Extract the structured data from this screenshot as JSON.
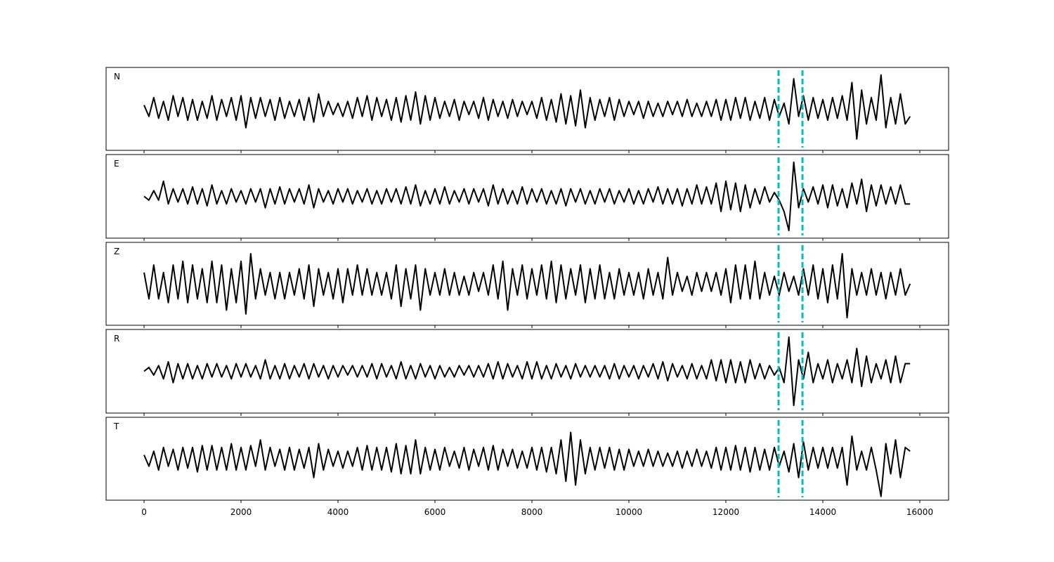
{
  "chart_data": {
    "type": "line",
    "x": [
      0,
      100,
      200,
      300,
      400,
      500,
      600,
      700,
      800,
      900,
      1000,
      1100,
      1200,
      1300,
      1400,
      1500,
      1600,
      1700,
      1800,
      1900,
      2000,
      2100,
      2200,
      2300,
      2400,
      2500,
      2600,
      2700,
      2800,
      2900,
      3000,
      3100,
      3200,
      3300,
      3400,
      3500,
      3600,
      3700,
      3800,
      3900,
      4000,
      4100,
      4200,
      4300,
      4400,
      4500,
      4600,
      4700,
      4800,
      4900,
      5000,
      5100,
      5200,
      5300,
      5400,
      5500,
      5600,
      5700,
      5800,
      5900,
      6000,
      6100,
      6200,
      6300,
      6400,
      6500,
      6600,
      6700,
      6800,
      6900,
      7000,
      7100,
      7200,
      7300,
      7400,
      7500,
      7600,
      7700,
      7800,
      7900,
      8000,
      8100,
      8200,
      8300,
      8400,
      8500,
      8600,
      8700,
      8800,
      8900,
      9000,
      9100,
      9200,
      9300,
      9400,
      9500,
      9600,
      9700,
      9800,
      9900,
      10000,
      10100,
      10200,
      10300,
      10400,
      10500,
      10600,
      10700,
      10800,
      10900,
      11000,
      11100,
      11200,
      11300,
      11400,
      11500,
      11600,
      11700,
      11800,
      11900,
      12000,
      12100,
      12200,
      12300,
      12400,
      12500,
      12600,
      12700,
      12800,
      12900,
      13000,
      13100,
      13200,
      13300,
      13400,
      13500,
      13600,
      13700,
      13800,
      13900,
      14000,
      14100,
      14200,
      14300,
      14400,
      14500,
      14600,
      14700,
      14800,
      14900,
      15000,
      15100,
      15200,
      15300,
      15400,
      15500,
      15600,
      15700,
      15800
    ],
    "xlim": [
      -783,
      16594
    ],
    "xticks": [
      0,
      2000,
      4000,
      6000,
      8000,
      10000,
      12000,
      14000,
      16000
    ],
    "ylim": [
      -1.1,
      1.1
    ],
    "vlines": [
      13087,
      13580
    ],
    "vline_color": "#00bfbf",
    "series": [
      {
        "name": "N",
        "color": "#000000",
        "values": [
          0.1,
          -0.2,
          0.3,
          -0.25,
          0.2,
          -0.3,
          0.35,
          -0.2,
          0.3,
          -0.3,
          0.25,
          -0.3,
          0.2,
          -0.25,
          0.35,
          -0.3,
          0.25,
          -0.2,
          0.3,
          -0.3,
          0.35,
          -0.5,
          0.3,
          -0.25,
          0.3,
          -0.2,
          0.25,
          -0.3,
          0.3,
          -0.25,
          0.2,
          -0.2,
          0.25,
          -0.3,
          0.3,
          -0.35,
          0.4,
          -0.2,
          0.2,
          -0.15,
          0.15,
          -0.2,
          0.2,
          -0.25,
          0.3,
          -0.2,
          0.35,
          -0.3,
          0.3,
          -0.2,
          0.25,
          -0.3,
          0.3,
          -0.35,
          0.35,
          -0.3,
          0.45,
          -0.4,
          0.35,
          -0.3,
          0.3,
          -0.25,
          0.2,
          -0.2,
          0.25,
          -0.3,
          0.2,
          -0.15,
          0.2,
          -0.25,
          0.3,
          -0.3,
          0.25,
          -0.2,
          0.2,
          -0.25,
          0.25,
          -0.2,
          0.2,
          -0.15,
          0.2,
          -0.25,
          0.3,
          -0.3,
          0.25,
          -0.35,
          0.4,
          -0.4,
          0.35,
          -0.45,
          0.5,
          -0.5,
          0.3,
          -0.3,
          0.25,
          -0.2,
          0.3,
          -0.3,
          0.25,
          -0.2,
          0.2,
          -0.15,
          0.2,
          -0.25,
          0.2,
          -0.2,
          0.15,
          -0.2,
          0.2,
          -0.15,
          0.2,
          -0.2,
          0.25,
          -0.2,
          0.15,
          -0.2,
          0.2,
          -0.2,
          0.25,
          -0.3,
          0.25,
          -0.3,
          0.3,
          -0.25,
          0.3,
          -0.3,
          0.2,
          -0.25,
          0.3,
          -0.3,
          0.25,
          -0.2,
          0.15,
          -0.4,
          0.8,
          -0.2,
          0.35,
          -0.3,
          0.3,
          -0.25,
          0.25,
          -0.3,
          0.3,
          -0.25,
          0.35,
          -0.3,
          0.7,
          -0.8,
          0.5,
          -0.4,
          0.3,
          -0.3,
          0.9,
          -0.5,
          0.3,
          -0.4,
          0.4,
          -0.4,
          -0.2
        ]
      },
      {
        "name": "E",
        "color": "#000000",
        "values": [
          0.0,
          -0.1,
          0.15,
          -0.1,
          0.4,
          -0.2,
          0.2,
          -0.15,
          0.2,
          -0.2,
          0.25,
          -0.2,
          0.2,
          -0.25,
          0.3,
          -0.2,
          0.15,
          -0.2,
          0.2,
          -0.15,
          0.15,
          -0.2,
          0.2,
          -0.15,
          0.2,
          -0.3,
          0.2,
          -0.2,
          0.25,
          -0.2,
          0.2,
          -0.15,
          0.2,
          -0.2,
          0.3,
          -0.3,
          0.2,
          -0.15,
          0.15,
          -0.2,
          0.2,
          -0.15,
          0.2,
          -0.2,
          0.15,
          -0.15,
          0.2,
          -0.2,
          0.15,
          -0.2,
          0.2,
          -0.15,
          0.2,
          -0.2,
          0.25,
          -0.2,
          0.3,
          -0.25,
          0.15,
          -0.2,
          0.2,
          -0.2,
          0.25,
          -0.2,
          0.15,
          -0.15,
          0.2,
          -0.2,
          0.2,
          -0.15,
          0.2,
          -0.25,
          0.3,
          -0.2,
          0.2,
          -0.2,
          0.15,
          -0.2,
          0.25,
          -0.2,
          0.2,
          -0.15,
          0.2,
          -0.2,
          0.15,
          -0.2,
          0.2,
          -0.25,
          0.2,
          -0.15,
          0.2,
          -0.2,
          0.15,
          -0.2,
          0.2,
          -0.15,
          0.2,
          -0.2,
          0.15,
          -0.15,
          0.2,
          -0.2,
          0.15,
          -0.2,
          0.2,
          -0.15,
          0.25,
          -0.2,
          0.2,
          -0.2,
          0.2,
          -0.25,
          0.2,
          -0.2,
          0.3,
          -0.2,
          0.25,
          -0.2,
          0.35,
          -0.4,
          0.4,
          -0.35,
          0.35,
          -0.4,
          0.3,
          -0.3,
          0.2,
          -0.2,
          0.25,
          -0.15,
          0.1,
          -0.1,
          -0.4,
          -0.9,
          0.9,
          -0.3,
          0.2,
          -0.15,
          0.25,
          -0.2,
          0.3,
          -0.3,
          0.3,
          -0.25,
          0.2,
          -0.3,
          0.35,
          -0.2,
          0.45,
          -0.4,
          0.3,
          -0.25,
          0.3,
          -0.2,
          0.25,
          -0.2,
          0.3,
          -0.2,
          -0.2
        ]
      },
      {
        "name": "Z",
        "color": "#000000",
        "values": [
          0.3,
          -0.4,
          0.5,
          -0.4,
          0.3,
          -0.5,
          0.5,
          -0.4,
          0.6,
          -0.5,
          0.5,
          -0.4,
          0.4,
          -0.5,
          0.6,
          -0.5,
          0.5,
          -0.7,
          0.4,
          -0.5,
          0.6,
          -0.8,
          0.8,
          -0.4,
          0.4,
          -0.3,
          0.3,
          -0.4,
          0.3,
          -0.4,
          0.3,
          -0.3,
          0.4,
          -0.4,
          0.5,
          -0.6,
          0.4,
          -0.3,
          0.3,
          -0.4,
          0.4,
          -0.5,
          0.4,
          -0.3,
          0.5,
          -0.3,
          0.4,
          -0.3,
          0.3,
          -0.3,
          0.3,
          -0.4,
          0.5,
          -0.6,
          0.4,
          -0.4,
          0.5,
          -0.7,
          0.4,
          -0.3,
          0.3,
          -0.3,
          0.4,
          -0.3,
          0.3,
          -0.3,
          0.2,
          -0.3,
          0.3,
          -0.2,
          0.3,
          -0.3,
          0.5,
          -0.4,
          0.6,
          -0.7,
          0.4,
          -0.3,
          0.5,
          -0.4,
          0.4,
          -0.3,
          0.5,
          -0.4,
          0.6,
          -0.5,
          0.5,
          -0.4,
          0.4,
          -0.3,
          0.5,
          -0.5,
          0.4,
          -0.4,
          0.5,
          -0.4,
          0.3,
          -0.4,
          0.4,
          -0.3,
          0.3,
          -0.3,
          0.3,
          -0.4,
          0.4,
          -0.3,
          0.3,
          -0.4,
          0.7,
          -0.3,
          0.3,
          -0.2,
          0.2,
          -0.3,
          0.3,
          -0.2,
          0.3,
          -0.2,
          0.3,
          -0.3,
          0.4,
          -0.5,
          0.5,
          -0.4,
          0.5,
          -0.4,
          0.6,
          -0.4,
          0.3,
          -0.3,
          0.2,
          -0.3,
          0.3,
          -0.2,
          0.2,
          -0.3,
          0.4,
          -0.3,
          0.5,
          -0.4,
          0.4,
          -0.5,
          0.5,
          -0.4,
          0.8,
          -0.9,
          0.4,
          -0.3,
          0.3,
          -0.3,
          0.4,
          -0.3,
          0.3,
          -0.4,
          0.3,
          -0.3,
          0.4,
          -0.3,
          0.0
        ]
      },
      {
        "name": "R",
        "color": "#000000",
        "values": [
          0.0,
          0.1,
          -0.1,
          0.15,
          -0.2,
          0.25,
          -0.3,
          0.2,
          -0.2,
          0.2,
          -0.2,
          0.15,
          -0.2,
          0.2,
          -0.15,
          0.2,
          -0.15,
          0.15,
          -0.2,
          0.2,
          -0.15,
          0.2,
          -0.15,
          0.15,
          -0.2,
          0.3,
          -0.2,
          0.15,
          -0.2,
          0.2,
          -0.2,
          0.15,
          -0.15,
          0.2,
          -0.2,
          0.2,
          -0.15,
          0.15,
          -0.2,
          0.15,
          -0.15,
          0.15,
          -0.1,
          0.15,
          -0.15,
          0.15,
          -0.15,
          0.2,
          -0.2,
          0.2,
          -0.15,
          0.15,
          -0.2,
          0.25,
          -0.2,
          0.15,
          -0.2,
          0.2,
          -0.15,
          0.15,
          -0.2,
          0.15,
          -0.15,
          0.1,
          -0.15,
          0.15,
          -0.1,
          0.15,
          -0.15,
          0.15,
          -0.15,
          0.2,
          -0.2,
          0.25,
          -0.2,
          0.2,
          -0.15,
          0.15,
          -0.2,
          0.25,
          -0.2,
          0.25,
          -0.2,
          0.15,
          -0.2,
          0.2,
          -0.15,
          0.15,
          -0.2,
          0.2,
          -0.15,
          0.15,
          -0.15,
          0.15,
          -0.15,
          0.15,
          -0.2,
          0.2,
          -0.2,
          0.15,
          -0.15,
          0.15,
          -0.2,
          0.15,
          -0.15,
          0.2,
          -0.2,
          0.25,
          -0.25,
          0.2,
          -0.15,
          0.15,
          -0.2,
          0.2,
          -0.2,
          0.15,
          -0.2,
          0.3,
          -0.25,
          0.3,
          -0.3,
          0.3,
          -0.3,
          0.25,
          -0.3,
          0.3,
          -0.2,
          0.2,
          -0.2,
          0.15,
          -0.1,
          0.1,
          -0.3,
          0.9,
          -0.9,
          0.3,
          -0.2,
          0.5,
          -0.3,
          0.2,
          -0.2,
          0.3,
          -0.3,
          0.2,
          -0.2,
          0.3,
          -0.3,
          0.6,
          -0.4,
          0.4,
          -0.3,
          0.2,
          -0.2,
          0.3,
          -0.3,
          0.4,
          -0.3,
          0.2,
          0.2
        ]
      },
      {
        "name": "T",
        "color": "#000000",
        "values": [
          0.1,
          -0.2,
          0.2,
          -0.3,
          0.3,
          -0.2,
          0.25,
          -0.3,
          0.3,
          -0.25,
          0.3,
          -0.35,
          0.35,
          -0.3,
          0.35,
          -0.3,
          0.3,
          -0.3,
          0.4,
          -0.3,
          0.3,
          -0.3,
          0.35,
          -0.2,
          0.5,
          -0.3,
          0.3,
          -0.2,
          0.25,
          -0.3,
          0.3,
          -0.3,
          0.25,
          -0.25,
          0.3,
          -0.5,
          0.4,
          -0.3,
          0.25,
          -0.2,
          0.2,
          -0.25,
          0.2,
          -0.2,
          0.3,
          -0.3,
          0.35,
          -0.3,
          0.3,
          -0.3,
          0.3,
          -0.35,
          0.4,
          -0.4,
          0.35,
          -0.4,
          0.5,
          -0.4,
          0.3,
          -0.3,
          0.25,
          -0.3,
          0.3,
          -0.2,
          0.2,
          -0.25,
          0.3,
          -0.3,
          0.25,
          -0.2,
          0.3,
          -0.3,
          0.35,
          -0.3,
          0.25,
          -0.2,
          0.25,
          -0.25,
          0.2,
          -0.25,
          0.3,
          -0.3,
          0.3,
          -0.35,
          0.3,
          -0.4,
          0.5,
          -0.6,
          0.7,
          -0.7,
          0.5,
          -0.4,
          0.3,
          -0.3,
          0.3,
          -0.25,
          0.3,
          -0.3,
          0.25,
          -0.3,
          0.25,
          -0.2,
          0.2,
          -0.2,
          0.25,
          -0.2,
          0.2,
          -0.2,
          0.15,
          -0.2,
          0.2,
          -0.25,
          0.2,
          -0.2,
          0.25,
          -0.2,
          0.2,
          -0.25,
          0.3,
          -0.3,
          0.3,
          -0.3,
          0.35,
          -0.3,
          0.3,
          -0.35,
          0.3,
          -0.3,
          0.25,
          -0.3,
          0.3,
          -0.2,
          0.2,
          -0.35,
          0.4,
          -0.5,
          0.45,
          -0.3,
          0.3,
          -0.25,
          0.3,
          -0.25,
          0.3,
          -0.25,
          0.3,
          -0.7,
          0.6,
          -0.3,
          0.2,
          -0.3,
          0.3,
          -0.3,
          -1.0,
          0.4,
          -0.4,
          0.5,
          -0.5,
          0.3,
          0.2
        ]
      }
    ]
  }
}
